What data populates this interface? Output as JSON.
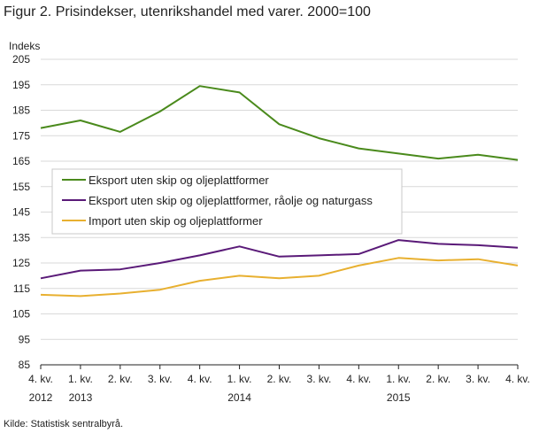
{
  "title": "Figur 2. Prisindekser, utenrikshandel med varer. 2000=100",
  "source": "Kilde: Statistisk sentralbyrå.",
  "chart_data": {
    "type": "line",
    "ylabel": "Indeks",
    "ylim": [
      85,
      205
    ],
    "yticks": [
      85,
      95,
      105,
      115,
      125,
      135,
      145,
      155,
      165,
      175,
      185,
      195,
      205
    ],
    "grid": true,
    "legend_position": "center-left",
    "categories": [
      "4. kv. 2012",
      "1. kv. 2013",
      "2. kv.",
      "3. kv.",
      "4. kv.",
      "1. kv. 2014",
      "2. kv.",
      "3. kv.",
      "4. kv.",
      "1. kv. 2015",
      "2. kv.",
      "3. kv.",
      "4. kv."
    ],
    "x_tick_lines": [
      [
        "4. kv.",
        "2012"
      ],
      [
        "1. kv.",
        "2013"
      ],
      [
        "2. kv.",
        ""
      ],
      [
        "3. kv.",
        ""
      ],
      [
        "4. kv.",
        ""
      ],
      [
        "1. kv.",
        "2014"
      ],
      [
        "2. kv.",
        ""
      ],
      [
        "3. kv.",
        ""
      ],
      [
        "4. kv.",
        ""
      ],
      [
        "1. kv.",
        "2015"
      ],
      [
        "2. kv.",
        ""
      ],
      [
        "3. kv.",
        ""
      ],
      [
        "4. kv.",
        ""
      ]
    ],
    "series": [
      {
        "name": "Eksport uten skip og oljeplattformer",
        "color": "#4a8a1c",
        "values": [
          178.0,
          181.0,
          176.5,
          184.5,
          194.5,
          192.0,
          179.5,
          174.0,
          170.0,
          168.0,
          166.0,
          167.5,
          165.5
        ]
      },
      {
        "name": "Eksport uten skip og oljeplattformer, råolje og naturgass",
        "color": "#5a1a78",
        "values": [
          119.0,
          122.0,
          122.5,
          125.0,
          128.0,
          131.5,
          127.5,
          128.0,
          128.5,
          134.0,
          132.5,
          132.0,
          131.0
        ]
      },
      {
        "name": "Import uten skip og oljeplattformer",
        "color": "#e8b030",
        "values": [
          112.5,
          112.0,
          113.0,
          114.5,
          118.0,
          120.0,
          119.0,
          120.0,
          124.0,
          127.0,
          126.0,
          126.5,
          124.0
        ]
      }
    ]
  }
}
